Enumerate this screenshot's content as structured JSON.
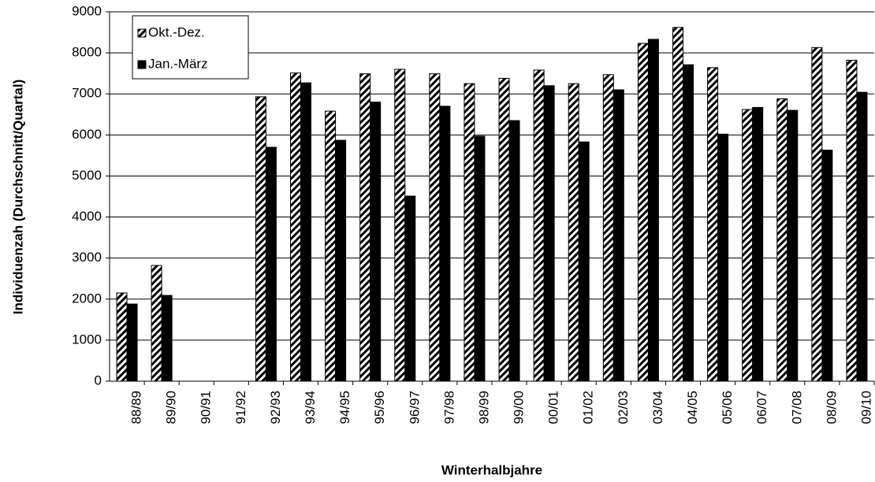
{
  "chart_data": {
    "type": "bar",
    "x_label": "Winterhalbjahre",
    "y_label": "Individuenzah (Durchschnitt/Quartal)",
    "categories": [
      "88/89",
      "89/90",
      "90/91",
      "91/92",
      "92/93",
      "93/94",
      "94/95",
      "95/96",
      "96/97",
      "97/98",
      "98/99",
      "99/00",
      "00/01",
      "01/02",
      "02/03",
      "03/04",
      "04/05",
      "05/06",
      "06/07",
      "07/08",
      "08/09",
      "09/10"
    ],
    "series": [
      {
        "name": "Okt.-Dez.",
        "color": "#000000",
        "hatch": true,
        "values": [
          2150,
          2820,
          null,
          null,
          6930,
          7510,
          6580,
          7490,
          7600,
          7490,
          7250,
          7380,
          7580,
          7250,
          7470,
          8230,
          8620,
          7640,
          6620,
          6880,
          8130,
          7820
        ]
      },
      {
        "name": "Jan.-März",
        "color": "#000000",
        "hatch": false,
        "values": [
          1880,
          2090,
          null,
          null,
          5700,
          7270,
          5870,
          6800,
          4510,
          6700,
          5970,
          6350,
          7200,
          5830,
          7100,
          8330,
          7710,
          6020,
          6670,
          6600,
          5630,
          7040
        ]
      }
    ],
    "ylim": [
      0,
      9000
    ],
    "yticks": [
      0,
      1000,
      2000,
      3000,
      4000,
      5000,
      6000,
      7000,
      8000,
      9000
    ],
    "grid": true,
    "legend": "top-left"
  }
}
